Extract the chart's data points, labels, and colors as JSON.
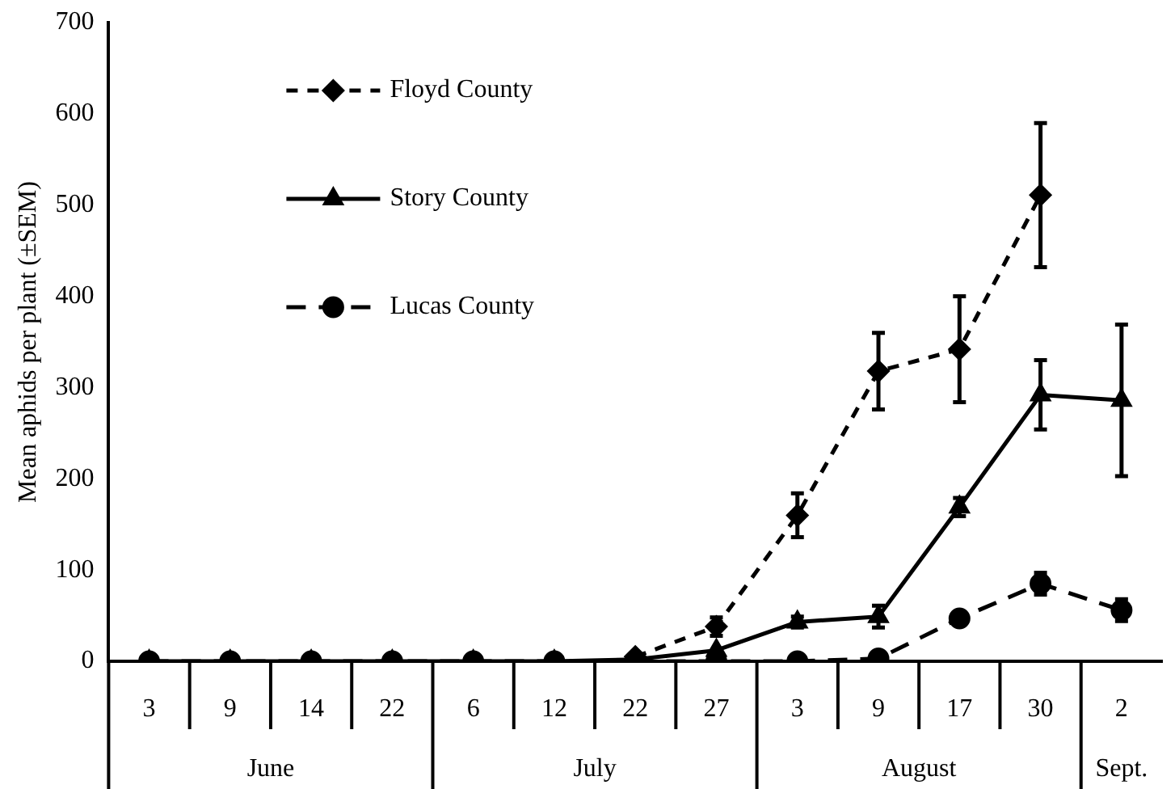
{
  "chart_data": {
    "type": "line",
    "ylabel": "Mean aphids per plant (±SEM)",
    "categories": [
      "3",
      "9",
      "14",
      "22",
      "6",
      "12",
      "22",
      "27",
      "3",
      "9",
      "17",
      "30",
      "2"
    ],
    "annotations": [
      "June",
      "July",
      "August",
      "Sept."
    ],
    "ylim": [
      0,
      700
    ],
    "yticks": [
      0,
      100,
      200,
      300,
      400,
      500,
      600,
      700
    ],
    "grid": false,
    "legend": "top left",
    "series": [
      {
        "name": "Floyd County",
        "color": "#000000",
        "marker": "diamond",
        "line_style": "dashed",
        "values": [
          null,
          null,
          null,
          null,
          null,
          null,
          5,
          38,
          160,
          318,
          342,
          511,
          null
        ],
        "errors": [
          null,
          null,
          null,
          null,
          null,
          null,
          null,
          10,
          24,
          42,
          58,
          79,
          null
        ]
      },
      {
        "name": "Story County",
        "color": "#000000",
        "marker": "triangle",
        "line_style": "solid",
        "values": [
          0,
          0,
          0,
          0,
          0,
          0,
          2,
          12,
          43,
          49,
          169,
          292,
          286
        ],
        "errors": [
          null,
          null,
          null,
          null,
          null,
          null,
          null,
          null,
          6,
          12,
          10,
          38,
          83
        ]
      },
      {
        "name": "Lucas County",
        "color": "#000000",
        "marker": "circle",
        "line_style": "dashed",
        "values": [
          0,
          0,
          0,
          0,
          0,
          0,
          0,
          0,
          0,
          3,
          47,
          85,
          56
        ],
        "errors": [
          null,
          null,
          null,
          null,
          null,
          null,
          null,
          null,
          null,
          null,
          null,
          12,
          12
        ]
      }
    ]
  }
}
